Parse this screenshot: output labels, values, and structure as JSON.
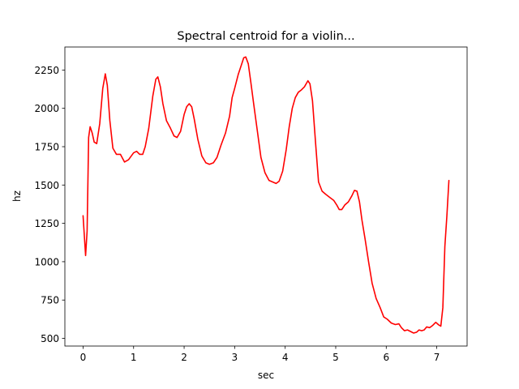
{
  "chart_data": {
    "type": "line",
    "title": "Spectral centroid for a violin...",
    "xlabel": "sec",
    "ylabel": "hz",
    "xlim": [
      -0.36,
      7.6
    ],
    "ylim": [
      450,
      2400
    ],
    "xticks": [
      0,
      1,
      2,
      3,
      4,
      5,
      6,
      7
    ],
    "yticks": [
      500,
      750,
      1000,
      1250,
      1500,
      1750,
      2000,
      2250
    ],
    "grid": false,
    "line_color": "#ff0000",
    "series": [
      {
        "x": [
          0.0,
          0.05,
          0.08,
          0.11,
          0.14,
          0.18,
          0.22,
          0.27,
          0.33,
          0.39,
          0.44,
          0.48,
          0.53,
          0.59,
          0.66,
          0.74,
          0.82,
          0.9,
          1.0,
          1.06,
          1.12,
          1.18,
          1.23,
          1.3,
          1.38,
          1.44,
          1.48,
          1.53,
          1.58,
          1.65,
          1.73,
          1.8,
          1.86,
          1.93,
          2.0,
          2.05,
          2.1,
          2.15,
          2.2,
          2.27,
          2.35,
          2.43,
          2.5,
          2.58,
          2.65,
          2.73,
          2.82,
          2.9,
          2.95,
          3.0,
          3.07,
          3.14,
          3.18,
          3.22,
          3.27,
          3.32,
          3.38,
          3.45,
          3.52,
          3.6,
          3.68,
          3.75,
          3.82,
          3.88,
          3.95,
          4.02,
          4.08,
          4.14,
          4.2,
          4.26,
          4.32,
          4.38,
          4.45,
          4.49,
          4.54,
          4.6,
          4.66,
          4.73,
          4.8,
          4.88,
          4.96,
          5.02,
          5.07,
          5.12,
          5.18,
          5.25,
          5.32,
          5.37,
          5.42,
          5.47,
          5.52,
          5.58,
          5.65,
          5.72,
          5.8,
          5.88,
          5.95,
          6.02,
          6.1,
          6.18,
          6.25,
          6.3,
          6.36,
          6.42,
          6.48,
          6.54,
          6.6,
          6.65,
          6.7,
          6.75,
          6.8,
          6.86,
          6.92,
          6.98,
          7.03,
          7.08,
          7.12,
          7.16,
          7.2,
          7.24
        ],
        "y": [
          1300,
          1040,
          1200,
          1810,
          1880,
          1840,
          1780,
          1770,
          1900,
          2130,
          2225,
          2150,
          1920,
          1740,
          1700,
          1700,
          1650,
          1665,
          1710,
          1720,
          1700,
          1700,
          1750,
          1870,
          2080,
          2190,
          2205,
          2140,
          2030,
          1920,
          1870,
          1820,
          1810,
          1850,
          1960,
          2010,
          2030,
          2010,
          1930,
          1800,
          1690,
          1645,
          1635,
          1645,
          1680,
          1760,
          1840,
          1950,
          2070,
          2130,
          2220,
          2290,
          2330,
          2335,
          2290,
          2170,
          2020,
          1850,
          1680,
          1580,
          1530,
          1520,
          1510,
          1525,
          1590,
          1730,
          1880,
          2000,
          2070,
          2105,
          2120,
          2140,
          2180,
          2160,
          2050,
          1780,
          1520,
          1460,
          1440,
          1420,
          1400,
          1370,
          1340,
          1340,
          1370,
          1390,
          1430,
          1465,
          1460,
          1390,
          1270,
          1150,
          1000,
          860,
          760,
          700,
          640,
          625,
          600,
          590,
          595,
          570,
          550,
          555,
          545,
          535,
          540,
          555,
          550,
          555,
          575,
          570,
          585,
          605,
          590,
          580,
          700,
          1100,
          1300,
          1530
        ]
      }
    ]
  }
}
